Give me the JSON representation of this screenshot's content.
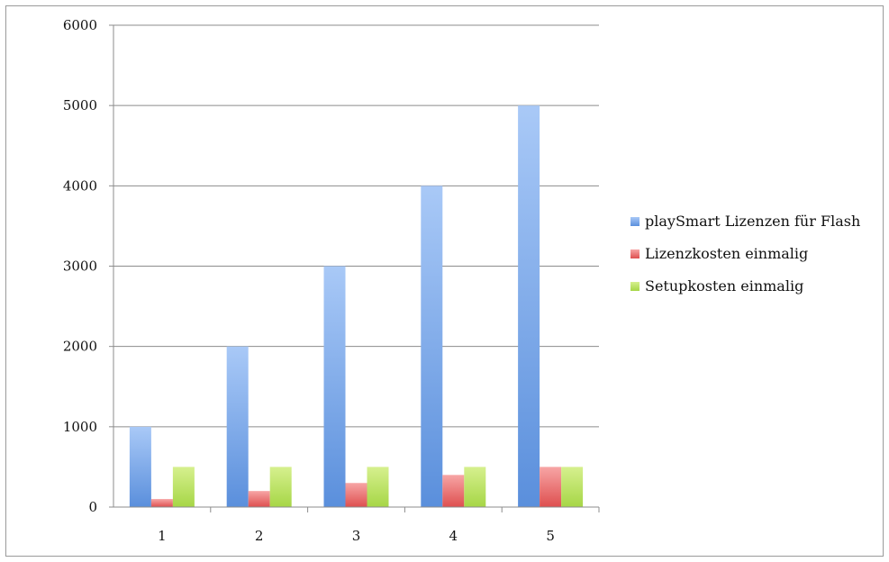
{
  "chart_data": {
    "type": "bar",
    "categories": [
      "1",
      "2",
      "3",
      "4",
      "5"
    ],
    "series": [
      {
        "name": "playSmart Lizenzen für Flash",
        "values": [
          1000,
          2000,
          3000,
          4000,
          5000
        ],
        "color": "#5a8fdc",
        "colorLight": "#a9c9f7"
      },
      {
        "name": "Lizenzkosten einmalig",
        "values": [
          100,
          200,
          300,
          400,
          500
        ],
        "color": "#de4f4f",
        "colorLight": "#f7a5a5"
      },
      {
        "name": "Setupkosten einmalig",
        "values": [
          500,
          500,
          500,
          500,
          500
        ],
        "color": "#a6d646",
        "colorLight": "#d6f08e"
      }
    ],
    "yticks": [
      0,
      1000,
      2000,
      3000,
      4000,
      5000,
      6000
    ],
    "ylim": [
      0,
      6000
    ],
    "grid": true,
    "legend_position": "right"
  }
}
